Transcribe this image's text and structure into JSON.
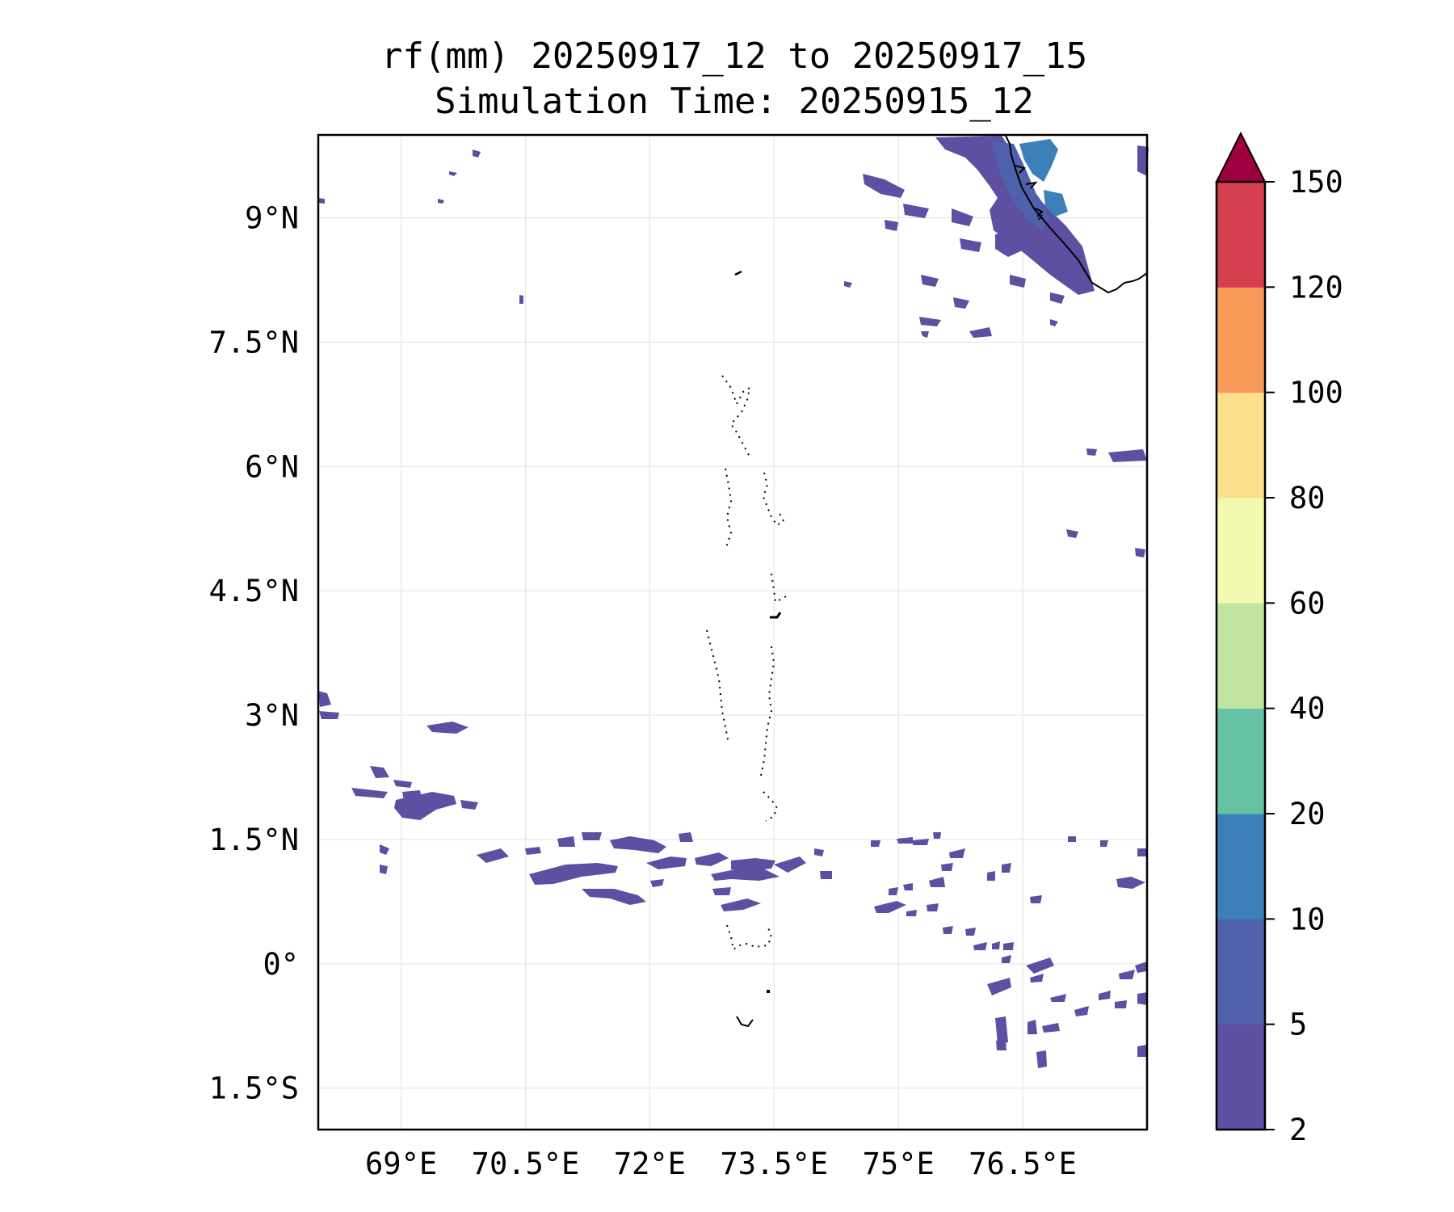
{
  "title": {
    "line1": "rf(mm) 20250917_12 to 20250917_15",
    "line2": "Simulation Time: 20250915_12"
  },
  "map": {
    "lon_range": [
      68.0,
      78.0
    ],
    "lat_range": [
      -2.0,
      10.0
    ],
    "lon_ticks": [
      {
        "value": 69.0,
        "label": "69°E"
      },
      {
        "value": 70.5,
        "label": "70.5°E"
      },
      {
        "value": 72.0,
        "label": "72°E"
      },
      {
        "value": 73.5,
        "label": "73.5°E"
      },
      {
        "value": 75.0,
        "label": "75°E"
      },
      {
        "value": 76.5,
        "label": "76.5°E"
      }
    ],
    "lat_ticks": [
      {
        "value": 9.0,
        "label": "9°N"
      },
      {
        "value": 7.5,
        "label": "7.5°N"
      },
      {
        "value": 6.0,
        "label": "6°N"
      },
      {
        "value": 4.5,
        "label": "4.5°N"
      },
      {
        "value": 3.0,
        "label": "3°N"
      },
      {
        "value": 1.5,
        "label": "1.5°N"
      },
      {
        "value": 0.0,
        "label": "0°"
      },
      {
        "value": -1.5,
        "label": "1.5°S"
      }
    ],
    "gridlines": true
  },
  "colorbar": {
    "levels": [
      {
        "label": "2",
        "color": "#5e4fa2"
      },
      {
        "label": "5",
        "color": "#4f61ab"
      },
      {
        "label": "10",
        "color": "#3b80b8"
      },
      {
        "label": "20",
        "color": "#66c2a5"
      },
      {
        "label": "40",
        "color": "#bfe5a0"
      },
      {
        "label": "60",
        "color": "#f3f9ae"
      },
      {
        "label": "80",
        "color": "#fedf8b"
      },
      {
        "label": "100",
        "color": "#fa9a58"
      },
      {
        "label": "120",
        "color": "#d53e4f"
      },
      {
        "label": "150",
        "color": "#9e0142"
      }
    ],
    "extend": "max",
    "label_2": "2",
    "label_5": "5",
    "label_10": "10",
    "label_20": "20",
    "label_40": "40",
    "label_60": "60",
    "label_80": "80",
    "label_100": "100",
    "label_120": "120",
    "label_150": "150"
  },
  "colors": {
    "rain_light": "#5e4fa2",
    "rain_medium": "#4f61ab",
    "rain_heavy": "#3b80b8",
    "coastline": "#000000",
    "grid": "#e6e6e6"
  }
}
